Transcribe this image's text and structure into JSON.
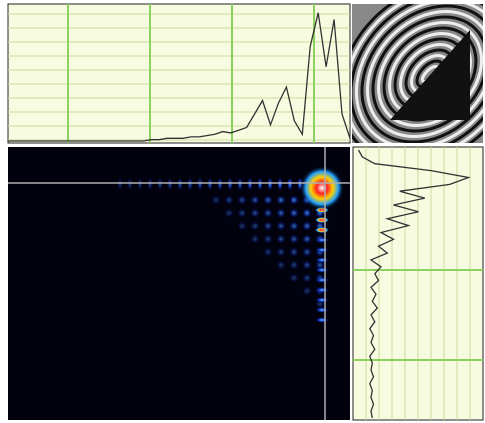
{
  "top_profile": [
    0,
    0,
    0,
    0,
    0,
    0,
    0,
    0,
    0,
    0,
    0,
    0,
    0,
    0,
    0,
    0,
    0,
    0,
    0.01,
    0.01,
    0.02,
    0.02,
    0.02,
    0.03,
    0.03,
    0.04,
    0.05,
    0.07,
    0.06,
    0.08,
    0.1,
    0.2,
    0.3,
    0.12,
    0.28,
    0.4,
    0.15,
    0.05,
    0.7,
    0.95,
    0.55,
    0.9,
    0.2,
    0.02
  ],
  "side_profile": [
    0.02,
    0.05,
    0.15,
    0.6,
    0.9,
    0.75,
    0.35,
    0.55,
    0.3,
    0.5,
    0.25,
    0.42,
    0.2,
    0.3,
    0.18,
    0.25,
    0.12,
    0.2,
    0.15,
    0.18,
    0.12,
    0.16,
    0.13,
    0.17,
    0.12,
    0.15,
    0.11,
    0.14,
    0.12,
    0.15,
    0.11,
    0.13,
    0.12,
    0.14,
    0.11,
    0.13,
    0.12,
    0.14,
    0.12,
    0.13
  ]
}
